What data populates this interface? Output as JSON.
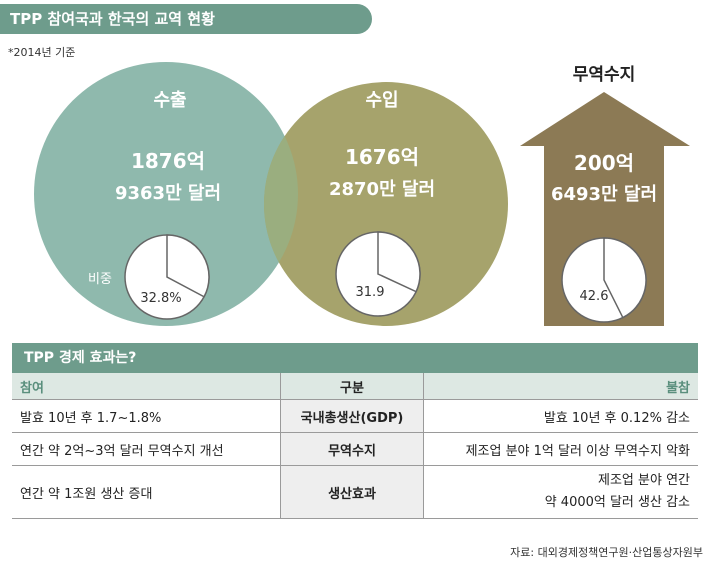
{
  "header": {
    "title": "TPP 참여국과 한국의 교역 현황",
    "basis": "*2014년 기준"
  },
  "colors": {
    "export": "#8fb9ad",
    "import": "#a6a36c",
    "overlap": "#9aae7f",
    "balance": "#8c7a55",
    "pie_fill": "#ffffff",
    "pie_stroke": "#666666",
    "accent": "#6e9c8c"
  },
  "chart_data": [
    {
      "type": "pie",
      "title": "수출",
      "amount": "1876억",
      "amount2": "9363만 달러",
      "share_label": "비중",
      "values": [
        32.8,
        67.2
      ],
      "label": "32.8%"
    },
    {
      "type": "pie",
      "title": "수입",
      "amount": "1676억",
      "amount2": "2870만 달러",
      "values": [
        31.9,
        68.1
      ],
      "label": "31.9"
    },
    {
      "type": "pie",
      "title": "무역수지",
      "amount": "200억",
      "amount2": "6493만 달러",
      "values": [
        42.6,
        57.4
      ],
      "label": "42.6"
    }
  ],
  "table": {
    "title": "TPP 경제 효과는?",
    "headers": {
      "left": "참여",
      "mid": "구분",
      "right": "불참"
    },
    "rows": [
      {
        "mid": "국내총생산(GDP)",
        "left": "발효 10년 후 1.7~1.8%",
        "right": "발효 10년 후  0.12% 감소"
      },
      {
        "mid": "무역수지",
        "left": "연간 약 2억~3억 달러 무역수지 개선",
        "right": "제조업 분야 1억 달러 이상 무역수지 악화"
      },
      {
        "mid": "생산효과",
        "left": "연간 약 1조원 생산 증대",
        "right_line1": "제조업 분야 연간",
        "right_line2": "약 4000억 달러 생산 감소"
      }
    ]
  },
  "source": "자료: 대외경제정책연구원·산업통상자원부"
}
